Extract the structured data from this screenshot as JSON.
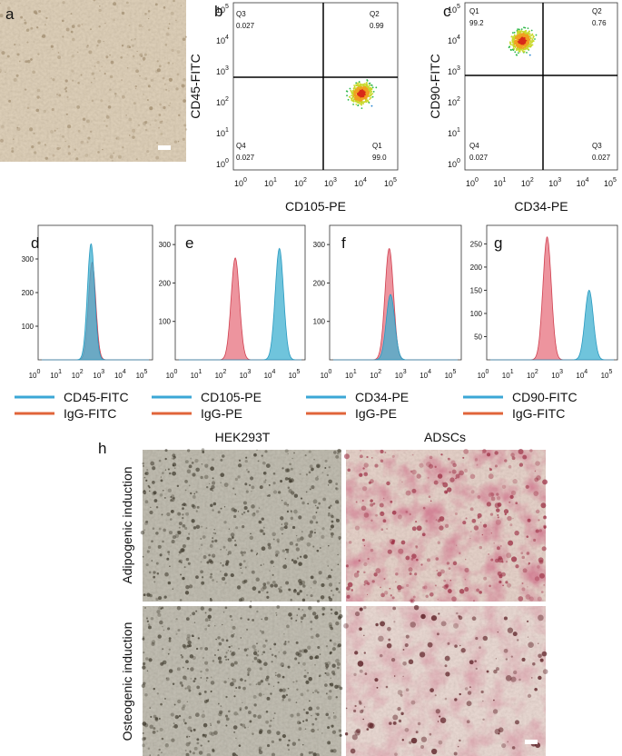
{
  "tick_base": "10",
  "log_ticks": [
    0,
    1,
    2,
    3,
    4,
    5
  ],
  "panel_a": {
    "label": "a"
  },
  "flow": [
    {
      "label": "b",
      "x_label": "CD105-PE",
      "y_label": "CD45-FITC",
      "quadrants": [
        {
          "name": "Q3",
          "value": "0.027"
        },
        {
          "name": "Q2",
          "value": "0.99"
        },
        {
          "name": "Q4",
          "value": "0.027"
        },
        {
          "name": "Q1",
          "value": "99.0"
        }
      ]
    },
    {
      "label": "c",
      "x_label": "CD34-PE",
      "y_label": "CD90-FITC",
      "quadrants": [
        {
          "name": "Q1",
          "value": "99.2"
        },
        {
          "name": "Q2",
          "value": "0.76"
        },
        {
          "name": "Q4",
          "value": "0.027"
        },
        {
          "name": "Q3",
          "value": "0.027"
        }
      ]
    }
  ],
  "histograms": [
    {
      "label": "d",
      "ylim": [
        0,
        400
      ],
      "yticks": [
        100,
        200,
        300
      ],
      "series": [
        {
          "name": "CD45-FITC",
          "color": "#3ba7d6",
          "peak": 2.3,
          "height": 345
        },
        {
          "name": "IgG-FITC",
          "color": "#e0643a",
          "peak": 2.35,
          "height": 290
        }
      ]
    },
    {
      "label": "e",
      "ylim": [
        0,
        350
      ],
      "yticks": [
        100,
        200,
        300
      ],
      "series": [
        {
          "name": "CD105-PE",
          "color": "#3ba7d6",
          "peak": 4.1,
          "height": 290
        },
        {
          "name": "IgG-PE",
          "color": "#e0643a",
          "peak": 2.3,
          "height": 265
        }
      ]
    },
    {
      "label": "f",
      "ylim": [
        0,
        350
      ],
      "yticks": [
        100,
        200,
        300
      ],
      "series": [
        {
          "name": "CD34-PE",
          "color": "#3ba7d6",
          "peak": 2.3,
          "height": 170
        },
        {
          "name": "IgG-PE",
          "color": "#e0643a",
          "peak": 2.25,
          "height": 290
        }
      ]
    },
    {
      "label": "g",
      "ylim": [
        0,
        290
      ],
      "yticks": [
        50,
        100,
        150,
        200,
        250
      ],
      "series": [
        {
          "name": "CD90-FITC",
          "color": "#3ba7d6",
          "peak": 4.0,
          "height": 150
        },
        {
          "name": "IgG-FITC",
          "color": "#e0643a",
          "peak": 2.3,
          "height": 265
        }
      ]
    }
  ],
  "panel_h": {
    "label": "h",
    "columns": [
      "HEK293T",
      "ADSCs"
    ],
    "rows": [
      "Adipogenic induction",
      "Osteogenic induction"
    ]
  }
}
